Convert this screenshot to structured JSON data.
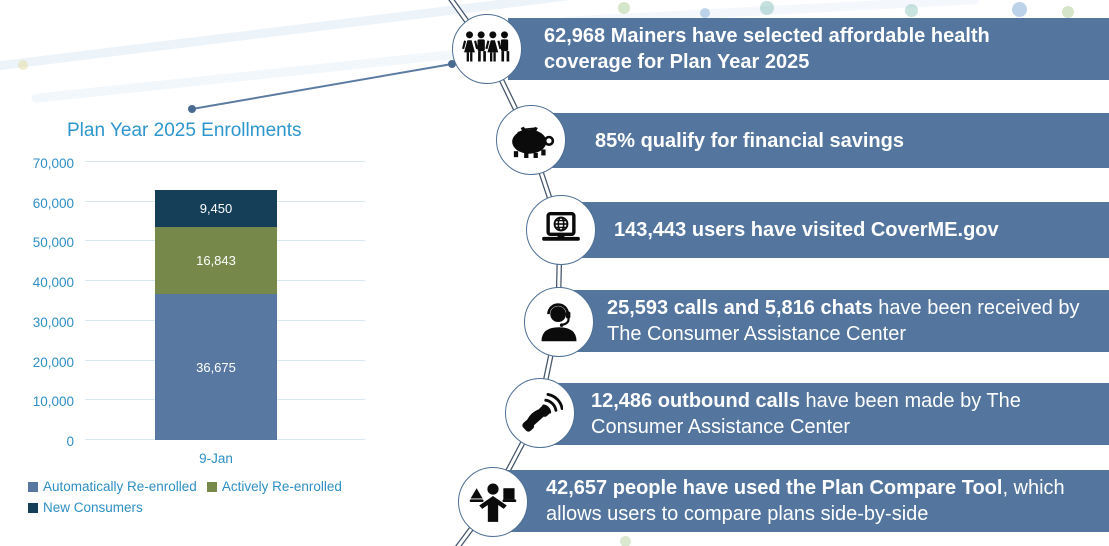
{
  "chart_data": {
    "type": "bar",
    "stacked": true,
    "title": "Plan Year 2025 Enrollments",
    "categories": [
      "9-Jan"
    ],
    "series": [
      {
        "name": "Automatically Re-enrolled",
        "values": [
          36675
        ],
        "color": "#5878a2"
      },
      {
        "name": "Actively Re-enrolled",
        "values": [
          16843
        ],
        "color": "#76894b"
      },
      {
        "name": "New Consumers",
        "values": [
          9450
        ],
        "color": "#153f58"
      }
    ],
    "total": 62968,
    "xlabel": "",
    "ylabel": "",
    "ylim": [
      0,
      70000
    ],
    "ytick_step": 10000,
    "grid": true,
    "legend_position": "bottom-left",
    "text_color": "#2e8fc4"
  },
  "callouts": [
    {
      "icon": "family-icon",
      "bold": "62,968 Mainers have selected affordable health coverage for Plan Year 2025",
      "rest": ""
    },
    {
      "icon": "piggy-bank-icon",
      "bold": "85% qualify for financial savings",
      "rest": ""
    },
    {
      "icon": "laptop-globe-icon",
      "bold": "143,443 users have visited CoverME.gov",
      "rest": ""
    },
    {
      "icon": "support-agent-icon",
      "bold": "25,593 calls and 5,816 chats",
      "rest": " have been received by The Consumer Assistance Center"
    },
    {
      "icon": "phone-call-icon",
      "bold": "12,486 outbound calls",
      "rest": " have been made by The Consumer Assistance Center"
    },
    {
      "icon": "plan-compare-icon",
      "bold": "42,657 people have used the Plan Compare Tool",
      "rest": ", which allows users to compare plans side-by-side"
    }
  ],
  "colors": {
    "callout_bar": "#54769e",
    "circle_border": "#4e6f94",
    "connector": "#44546a",
    "leader_line": "#5c7ba3",
    "chart_text": "#2e8fc4",
    "gridline": "#d7e7f2"
  }
}
